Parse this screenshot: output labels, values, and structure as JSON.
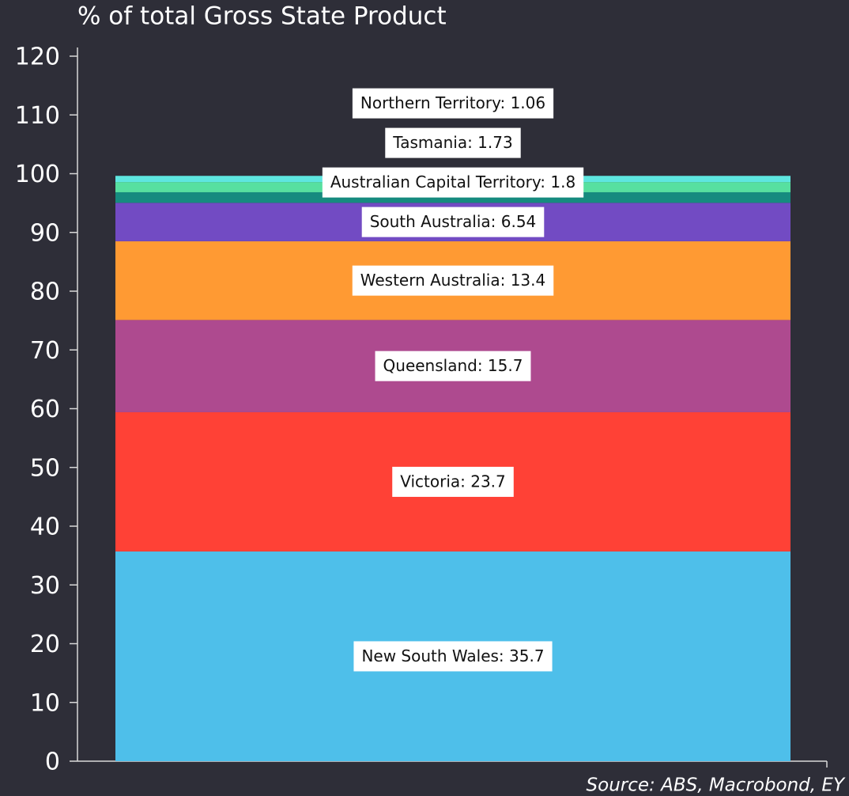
{
  "chart_data": {
    "type": "stacked_bar",
    "title": "% of total Gross State Product",
    "source": "Source: ABS, Macrobond, EY",
    "ylim": [
      0,
      120
    ],
    "yticks": [
      0,
      10,
      20,
      30,
      40,
      50,
      60,
      70,
      80,
      90,
      100,
      110,
      120
    ],
    "series": [
      {
        "color": "#4ebfea",
        "values": [
          35.7
        ],
        "value_labels": [
          "New South Wales: 35.7"
        ]
      },
      {
        "color": "#ff4136",
        "values": [
          23.7
        ],
        "value_labels": [
          "Victoria: 23.7"
        ]
      },
      {
        "color": "#ae4a8f",
        "values": [
          15.7
        ],
        "value_labels": [
          "Queensland: 15.7"
        ]
      },
      {
        "color": "#ff9a33",
        "values": [
          13.4
        ],
        "value_labels": [
          "Western Australia: 13.4"
        ]
      },
      {
        "color": "#724bc3",
        "values": [
          6.54
        ],
        "value_labels": [
          "South Australia: 6.54"
        ]
      },
      {
        "color": "#168b7f",
        "values": [
          1.8
        ],
        "value_labels": [
          "Australian Capital Territory: 1.8"
        ]
      },
      {
        "color": "#57e0a0",
        "values": [
          1.73
        ],
        "value_labels": [
          "Tasmania: 1.73"
        ]
      },
      {
        "color": "#5ee6e0",
        "values": [
          1.06
        ],
        "value_labels": [
          "Northern Territory: 1.06"
        ]
      }
    ]
  }
}
